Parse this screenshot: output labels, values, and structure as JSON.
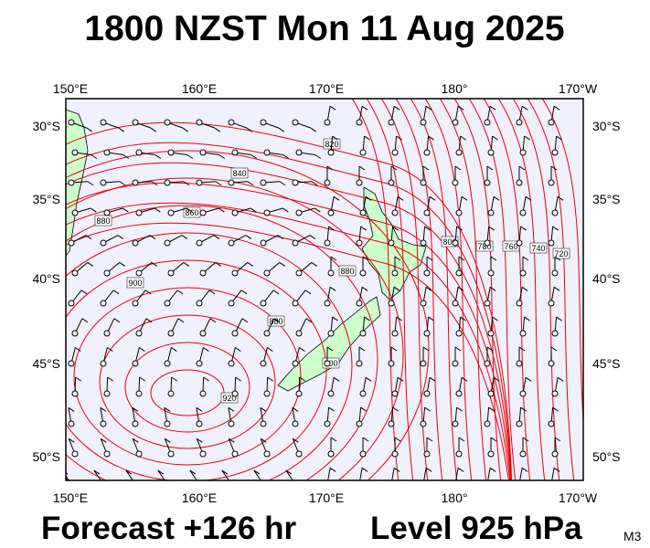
{
  "header": {
    "title": "1800 NZST Mon 11 Aug 2025"
  },
  "axes": {
    "top_labels": [
      "150°E",
      "160°E",
      "170°E",
      "180°",
      "170°W"
    ],
    "bottom_labels": [
      "150°E",
      "160°E",
      "170°E",
      "180°",
      "170°W"
    ],
    "left_labels": [
      "30°S",
      "35°S",
      "40°S",
      "45°S",
      "50°S"
    ],
    "right_labels": [
      "30°S",
      "35°S",
      "40°S",
      "45°S",
      "50°S"
    ]
  },
  "contour_labels": [
    "820",
    "840",
    "860",
    "880",
    "900",
    "880",
    "880",
    "900",
    "920",
    "800",
    "780",
    "760",
    "740",
    "720"
  ],
  "footer": {
    "forecast": "Forecast +126 hr",
    "level": "Level 925 hPa",
    "model": "M3"
  }
}
